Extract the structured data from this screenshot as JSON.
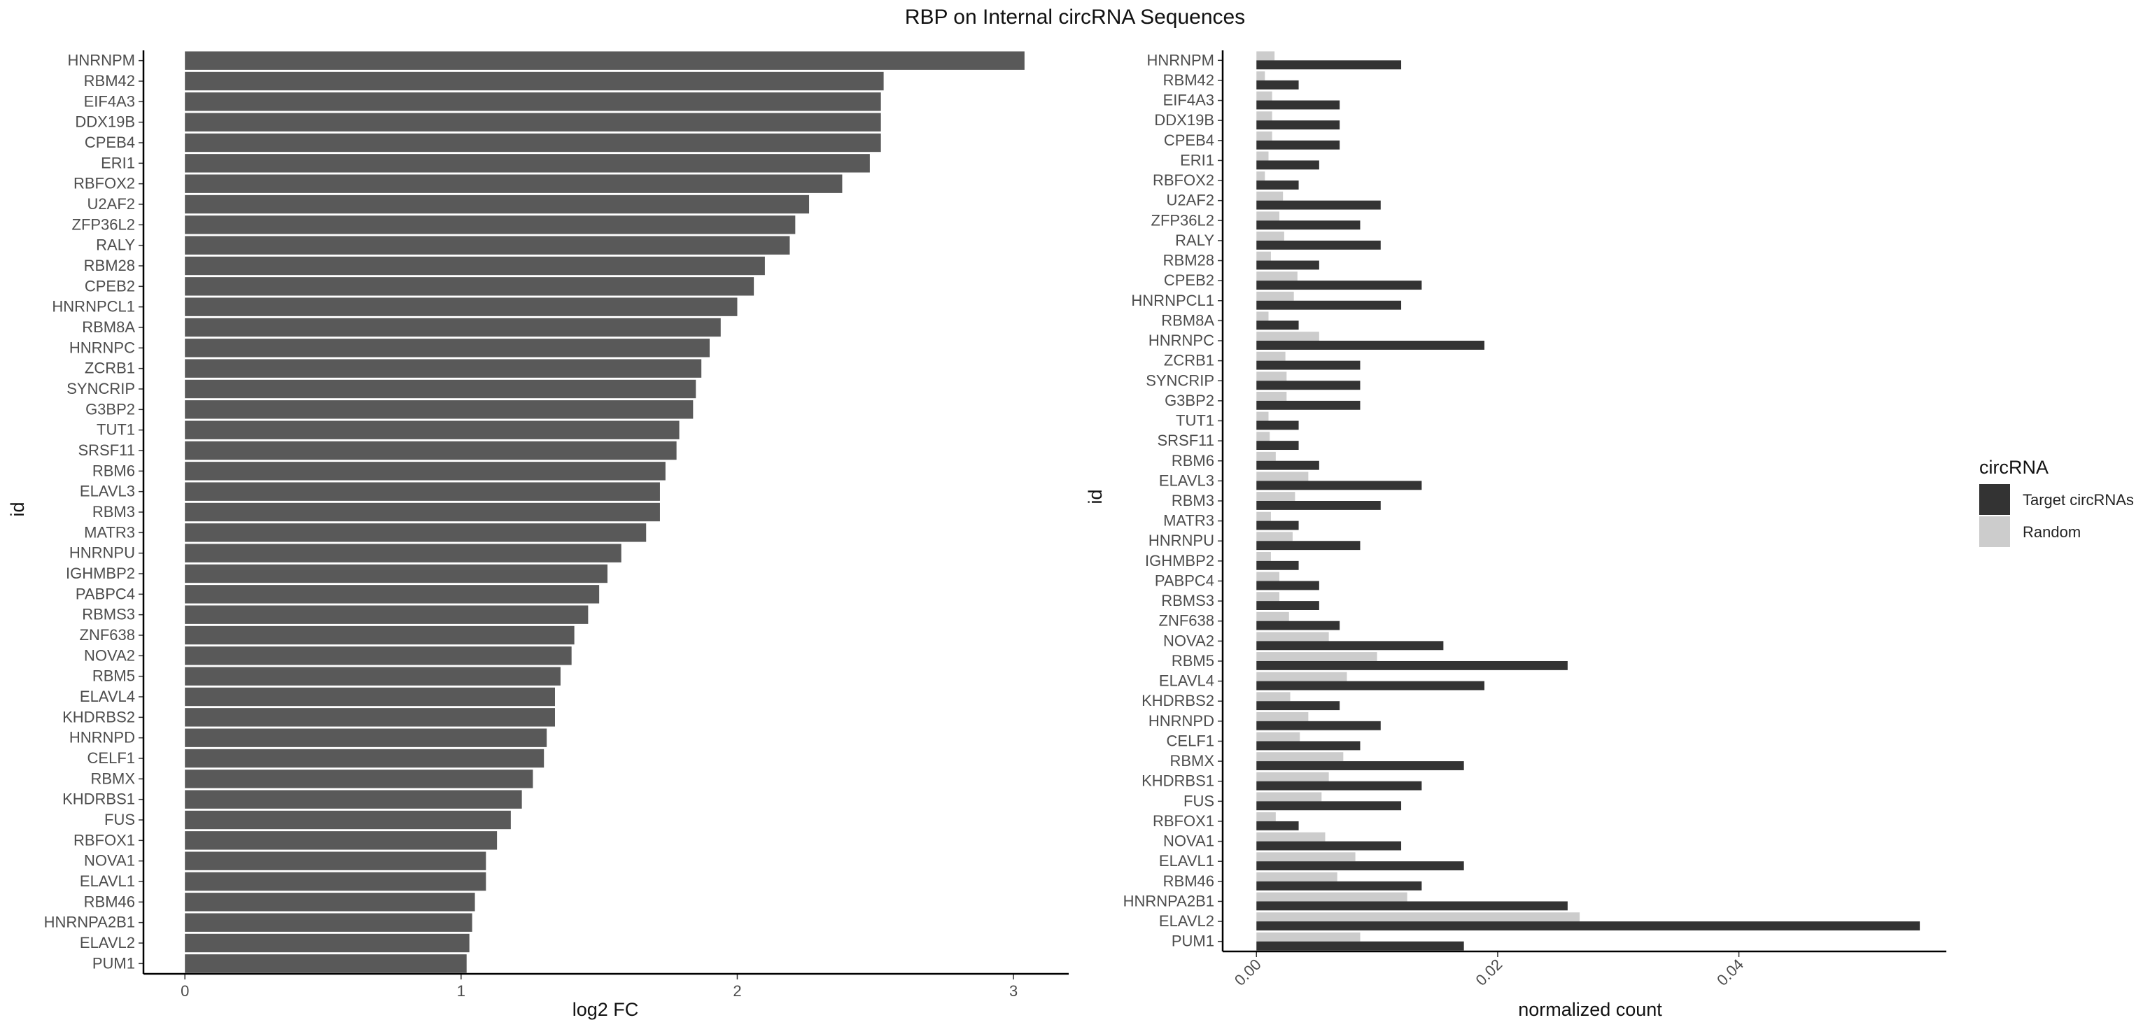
{
  "title": "RBP on Internal circRNA Sequences",
  "chart_data": [
    {
      "type": "bar",
      "orientation": "horizontal",
      "ylabel": "id",
      "xlabel": "log2 FC",
      "xlim": [
        -0.15,
        3.2
      ],
      "xticks": [
        0,
        1,
        2,
        3
      ],
      "categories": [
        "HNRNPM",
        "RBM42",
        "EIF4A3",
        "DDX19B",
        "CPEB4",
        "ERI1",
        "RBFOX2",
        "U2AF2",
        "ZFP36L2",
        "RALY",
        "RBM28",
        "CPEB2",
        "HNRNPCL1",
        "RBM8A",
        "HNRNPC",
        "ZCRB1",
        "SYNCRIP",
        "G3BP2",
        "TUT1",
        "SRSF11",
        "RBM6",
        "ELAVL3",
        "RBM3",
        "MATR3",
        "HNRNPU",
        "IGHMBP2",
        "PABPC4",
        "RBMS3",
        "ZNF638",
        "NOVA2",
        "RBM5",
        "ELAVL4",
        "KHDRBS2",
        "HNRNPD",
        "CELF1",
        "RBMX",
        "KHDRBS1",
        "FUS",
        "RBFOX1",
        "NOVA1",
        "ELAVL1",
        "RBM46",
        "HNRNPA2B1",
        "ELAVL2",
        "PUM1"
      ],
      "values": [
        3.04,
        2.53,
        2.52,
        2.52,
        2.52,
        2.48,
        2.38,
        2.26,
        2.21,
        2.19,
        2.1,
        2.06,
        2.0,
        1.94,
        1.9,
        1.87,
        1.85,
        1.84,
        1.79,
        1.78,
        1.74,
        1.72,
        1.72,
        1.67,
        1.58,
        1.53,
        1.5,
        1.46,
        1.41,
        1.4,
        1.36,
        1.34,
        1.34,
        1.31,
        1.3,
        1.26,
        1.22,
        1.18,
        1.13,
        1.09,
        1.09,
        1.05,
        1.04,
        1.03,
        1.02
      ],
      "bar_color": "#595959",
      "grid": false
    },
    {
      "type": "bar",
      "orientation": "horizontal",
      "grouped": true,
      "ylabel": "id",
      "xlabel": "normalized count",
      "xlim": [
        -0.0028,
        0.0572
      ],
      "xticks": [
        0.0,
        0.02,
        0.04
      ],
      "xtick_labels": [
        "0.00",
        "0.02",
        "0.04"
      ],
      "categories": [
        "HNRNPM",
        "RBM42",
        "EIF4A3",
        "DDX19B",
        "CPEB4",
        "ERI1",
        "RBFOX2",
        "U2AF2",
        "ZFP36L2",
        "RALY",
        "RBM28",
        "CPEB2",
        "HNRNPCL1",
        "RBM8A",
        "HNRNPC",
        "ZCRB1",
        "SYNCRIP",
        "G3BP2",
        "TUT1",
        "SRSF11",
        "RBM6",
        "ELAVL3",
        "RBM3",
        "MATR3",
        "HNRNPU",
        "IGHMBP2",
        "PABPC4",
        "RBMS3",
        "ZNF638",
        "NOVA2",
        "RBM5",
        "ELAVL4",
        "KHDRBS2",
        "HNRNPD",
        "CELF1",
        "RBMX",
        "KHDRBS1",
        "FUS",
        "RBFOX1",
        "NOVA1",
        "ELAVL1",
        "RBM46",
        "HNRNPA2B1",
        "ELAVL2",
        "PUM1"
      ],
      "series": [
        {
          "name": "Random",
          "color": "#cccccc",
          "values": [
            0.0015,
            0.0007,
            0.0013,
            0.0013,
            0.0013,
            0.001,
            0.0007,
            0.0022,
            0.0019,
            0.0023,
            0.0012,
            0.0034,
            0.0031,
            0.001,
            0.0052,
            0.0024,
            0.0025,
            0.0025,
            0.001,
            0.0011,
            0.0016,
            0.0043,
            0.0032,
            0.0012,
            0.003,
            0.0012,
            0.0019,
            0.0019,
            0.0027,
            0.006,
            0.01,
            0.0075,
            0.0028,
            0.0043,
            0.0036,
            0.0072,
            0.006,
            0.0054,
            0.0016,
            0.0057,
            0.0082,
            0.0067,
            0.0125,
            0.0268,
            0.0086
          ]
        },
        {
          "name": "Target circRNAs",
          "color": "#333333",
          "values": [
            0.012,
            0.0035,
            0.0069,
            0.0069,
            0.0069,
            0.0052,
            0.0035,
            0.0103,
            0.0086,
            0.0103,
            0.0052,
            0.0137,
            0.012,
            0.0035,
            0.0189,
            0.0086,
            0.0086,
            0.0086,
            0.0035,
            0.0035,
            0.0052,
            0.0137,
            0.0103,
            0.0035,
            0.0086,
            0.0035,
            0.0052,
            0.0052,
            0.0069,
            0.0155,
            0.0258,
            0.0189,
            0.0069,
            0.0103,
            0.0086,
            0.0172,
            0.0137,
            0.012,
            0.0035,
            0.012,
            0.0172,
            0.0137,
            0.0258,
            0.055,
            0.0172
          ]
        }
      ],
      "legend": {
        "title": "circRNA",
        "position": "right",
        "entries": [
          {
            "label": "Target circRNAs",
            "color": "#333333"
          },
          {
            "label": "Random",
            "color": "#cccccc"
          }
        ]
      },
      "grid": false
    }
  ]
}
